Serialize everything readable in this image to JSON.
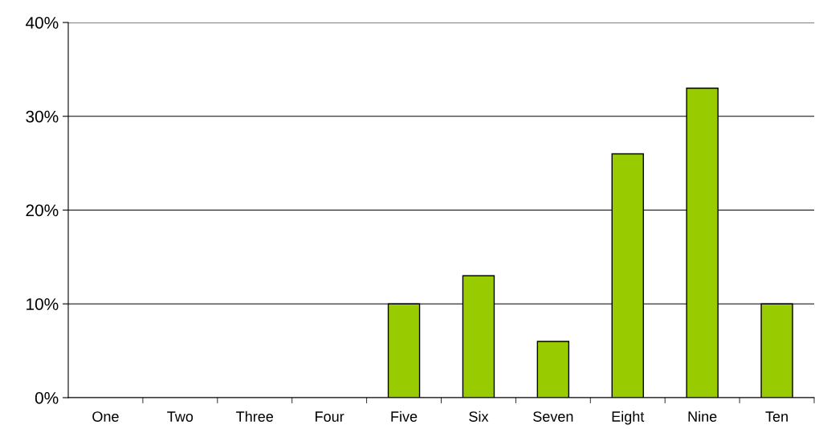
{
  "chart_data": {
    "type": "bar",
    "categories": [
      "One",
      "Two",
      "Three",
      "Four",
      "Five",
      "Six",
      "Seven",
      "Eight",
      "Nine",
      "Ten"
    ],
    "values": [
      0,
      0,
      0,
      0,
      10,
      13,
      6,
      26,
      33,
      10
    ],
    "color": "#99cc00",
    "ylim": [
      0,
      40
    ],
    "yticks": [
      {
        "value": 0,
        "label": "0%"
      },
      {
        "value": 10,
        "label": "10%"
      },
      {
        "value": 20,
        "label": "20%"
      },
      {
        "value": 30,
        "label": "30%"
      },
      {
        "value": 40,
        "label": "40%"
      }
    ],
    "grid": "y"
  }
}
